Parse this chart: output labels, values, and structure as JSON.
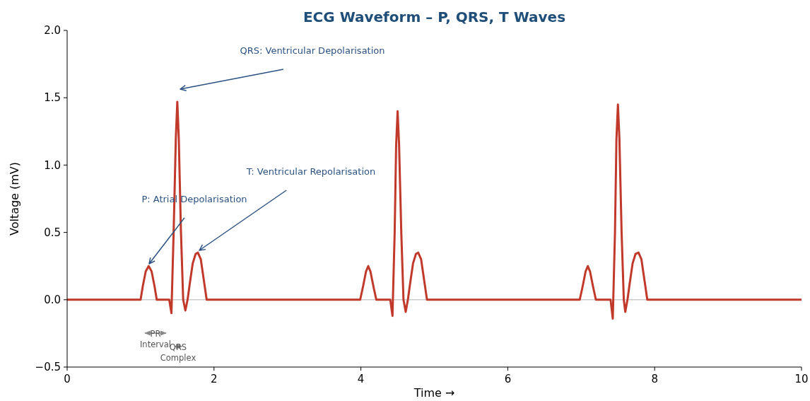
{
  "chart_data": {
    "type": "line",
    "title": "ECG Waveform – P, QRS, T Waves",
    "xlabel": "Time →",
    "ylabel": "Voltage (mV)",
    "xlim": [
      0,
      10
    ],
    "ylim": [
      -0.5,
      2.0
    ],
    "xticks": [
      0,
      2,
      4,
      6,
      8,
      10
    ],
    "yticks": [
      -0.5,
      {
        "value": 0,
        "label": "0.0"
      },
      0.5,
      {
        "value": 1,
        "label": "1.0"
      },
      1.5,
      {
        "value": 2,
        "label": "2.0"
      }
    ],
    "grid": false,
    "marker": "none",
    "line_style": "solid",
    "ref_lines": [
      {
        "axis": "y",
        "value": 0,
        "color": "#cccccc"
      }
    ],
    "series": [
      {
        "color": "#c0392b",
        "x": [
          0,
          1.0,
          1.03,
          1.07,
          1.11,
          1.15,
          1.19,
          1.22,
          1.39,
          1.42,
          1.45,
          1.48,
          1.5,
          1.52,
          1.55,
          1.58,
          1.61,
          1.64,
          1.67,
          1.71,
          1.75,
          1.78,
          1.82,
          1.86,
          1.9,
          3.99,
          4.03,
          4.07,
          4.1,
          4.13,
          4.17,
          4.21,
          4.4,
          4.43,
          4.46,
          4.48,
          4.5,
          4.52,
          4.55,
          4.58,
          4.61,
          4.64,
          4.67,
          4.71,
          4.75,
          4.78,
          4.82,
          4.86,
          4.9,
          6.98,
          7.02,
          7.06,
          7.09,
          7.12,
          7.16,
          7.2,
          7.4,
          7.43,
          7.46,
          7.48,
          7.5,
          7.52,
          7.55,
          7.58,
          7.6,
          7.63,
          7.66,
          7.7,
          7.74,
          7.78,
          7.82,
          7.86,
          7.9,
          10
        ],
        "values": [
          0,
          0,
          0.1,
          0.21,
          0.25,
          0.21,
          0.1,
          0,
          0,
          -0.1,
          0.5,
          1.2,
          1.47,
          1.2,
          0.5,
          0,
          -0.08,
          0,
          0.12,
          0.27,
          0.34,
          0.35,
          0.3,
          0.15,
          0,
          0,
          0.1,
          0.21,
          0.25,
          0.21,
          0.1,
          0,
          0,
          -0.12,
          0.5,
          1.15,
          1.4,
          1.15,
          0.5,
          0,
          -0.09,
          0,
          0.12,
          0.27,
          0.34,
          0.35,
          0.3,
          0.15,
          0,
          0,
          0.1,
          0.21,
          0.25,
          0.21,
          0.1,
          0,
          0,
          -0.14,
          0.5,
          1.2,
          1.45,
          1.2,
          0.5,
          0,
          -0.09,
          0,
          0.12,
          0.27,
          0.34,
          0.35,
          0.3,
          0.15,
          0,
          0
        ]
      }
    ],
    "annotations": [
      "QRS: Ventricular Depolarisation",
      "T: Ventricular Repolarisation",
      "P: Atrial Depolarisation",
      "PR\nInterval",
      "QRS\nComplex"
    ]
  }
}
